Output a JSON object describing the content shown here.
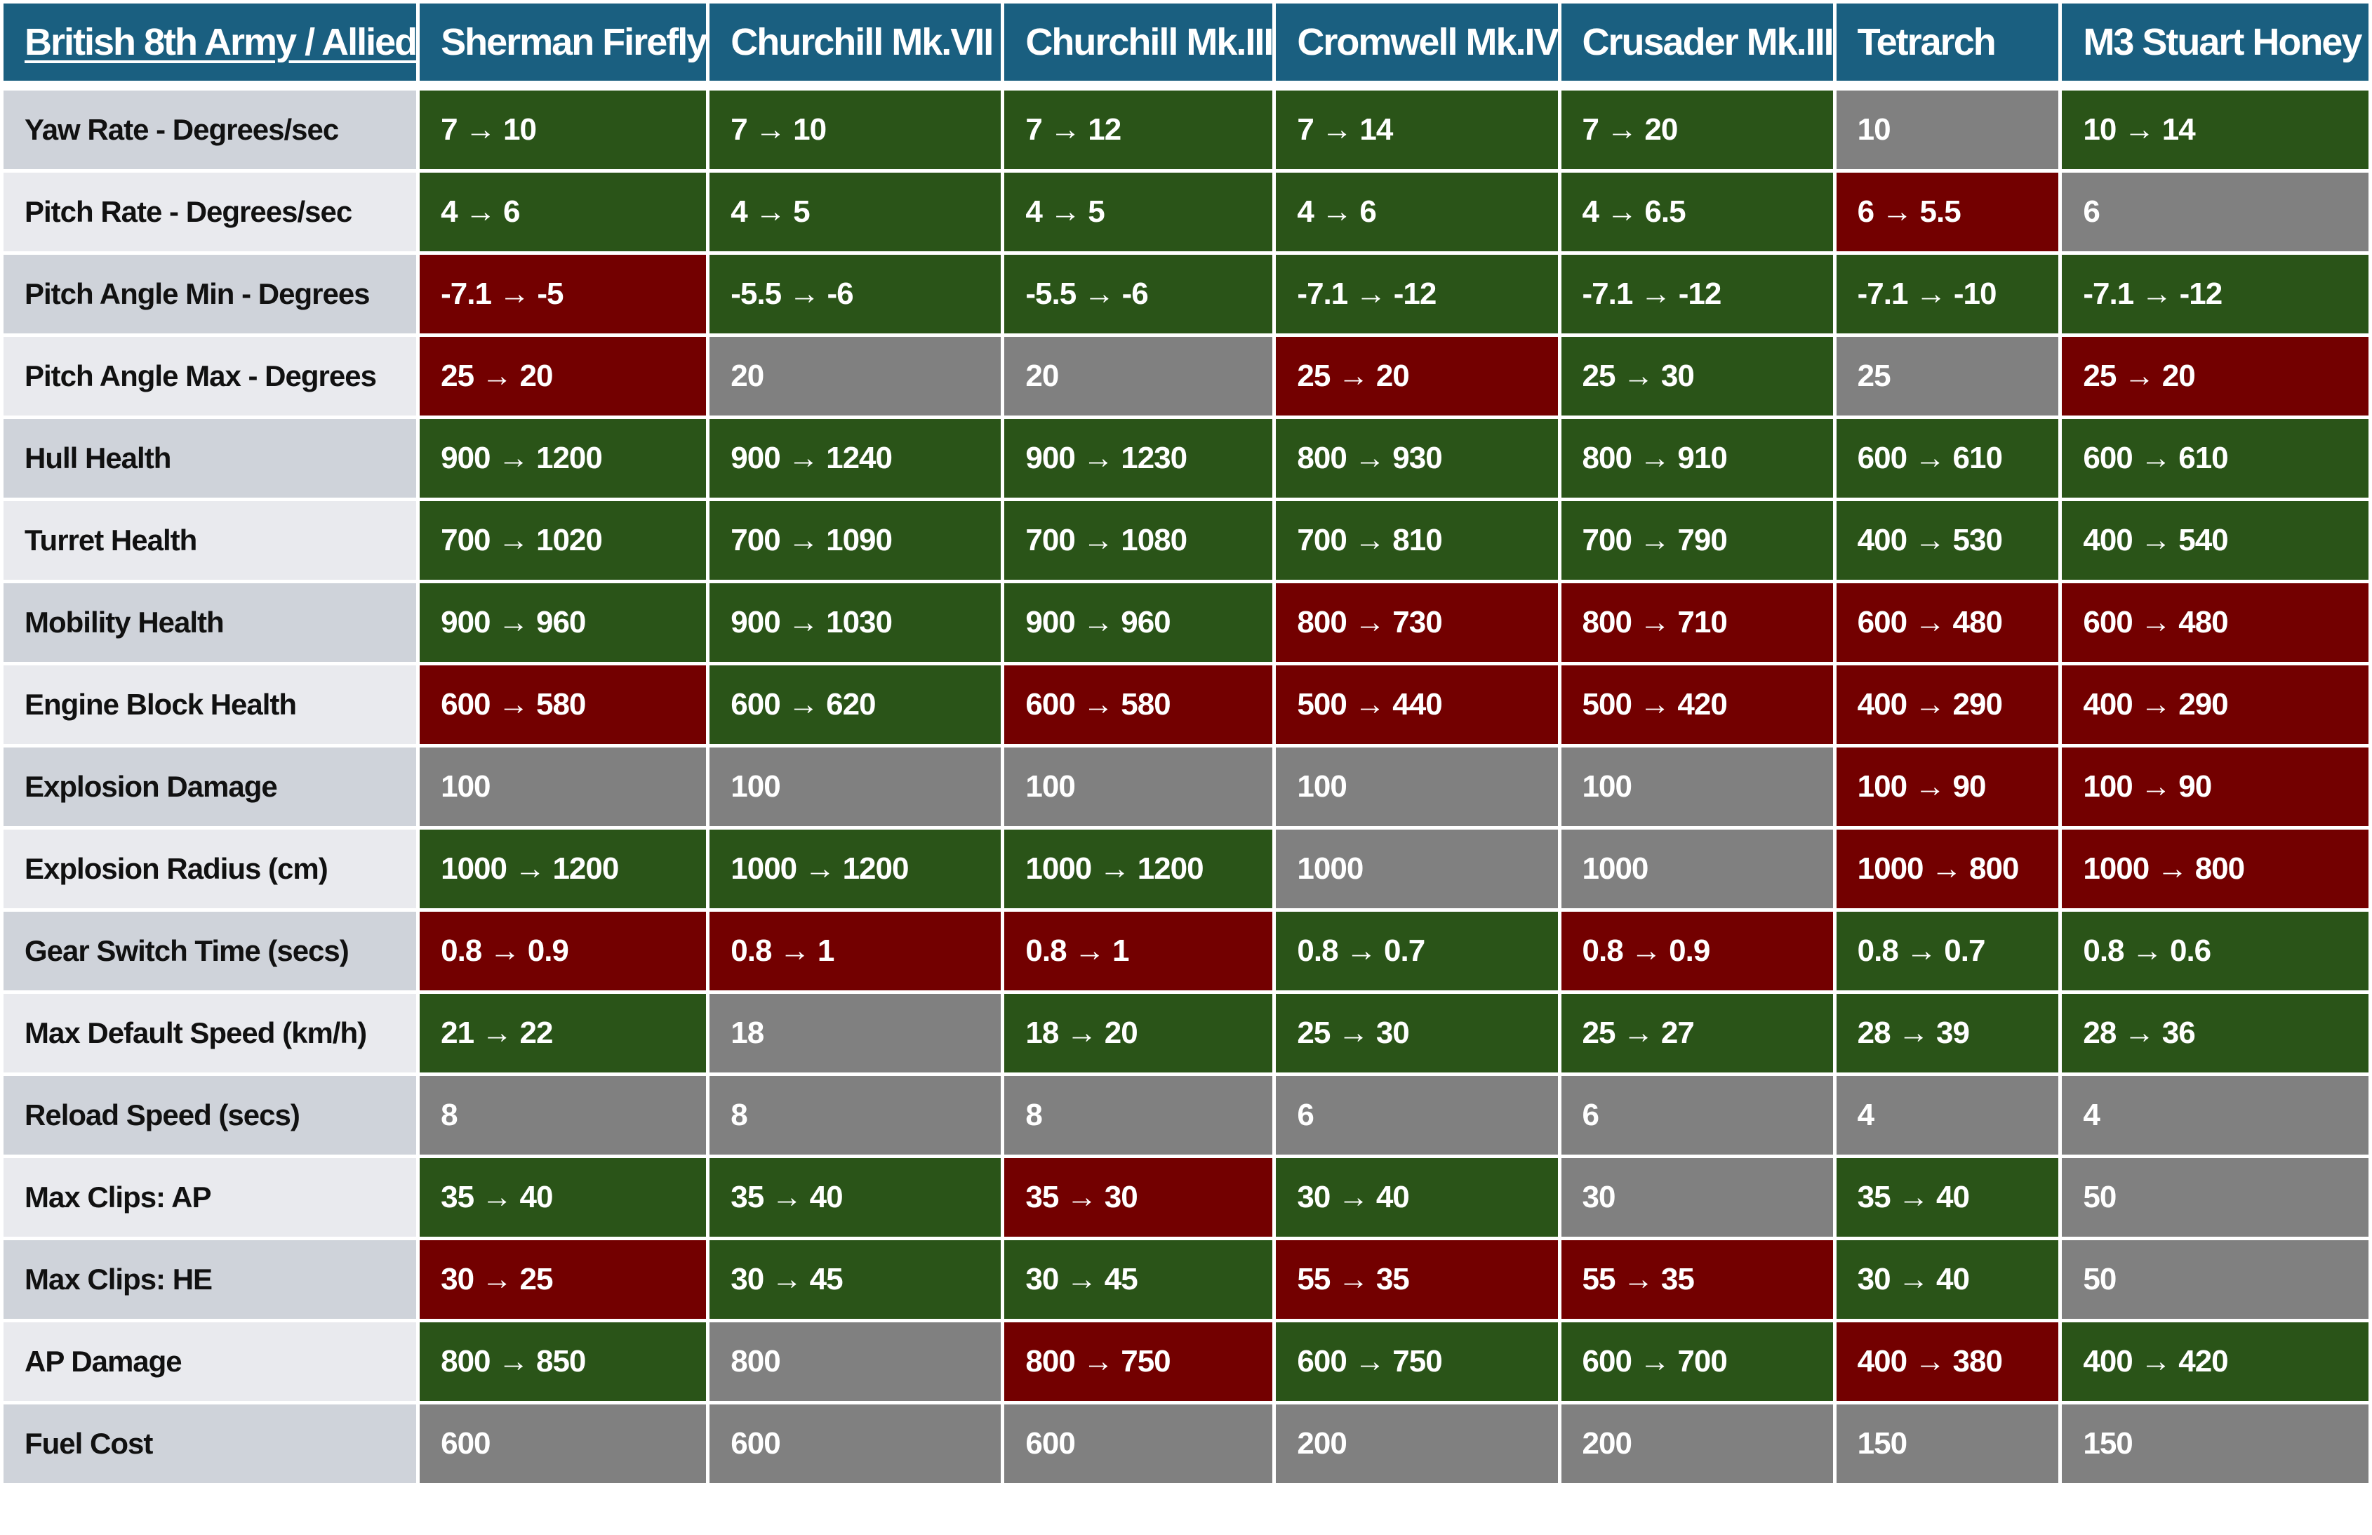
{
  "colors": {
    "header": "#1a5f80",
    "better": "#2a5418",
    "worse": "#730000",
    "unchanged": "#808080"
  },
  "table": {
    "corner_label": "British 8th Army / Allied",
    "columns": [
      "Sherman Firefly",
      "Churchill Mk.VII",
      "Churchill Mk.III",
      "Cromwell Mk.IV",
      "Crusader Mk.III",
      "Tetrarch",
      "M3 Stuart Honey"
    ],
    "rows": [
      {
        "label": "Yaw Rate - Degrees/sec",
        "cells": [
          [
            "7 → 10",
            "better"
          ],
          [
            "7 → 10",
            "better"
          ],
          [
            "7 → 12",
            "better"
          ],
          [
            "7 → 14",
            "better"
          ],
          [
            "7 → 20",
            "better"
          ],
          [
            "10",
            "unchanged"
          ],
          [
            "10 → 14",
            "better"
          ]
        ]
      },
      {
        "label": "Pitch Rate - Degrees/sec",
        "cells": [
          [
            "4 → 6",
            "better"
          ],
          [
            "4 → 5",
            "better"
          ],
          [
            "4 → 5",
            "better"
          ],
          [
            "4 → 6",
            "better"
          ],
          [
            "4 → 6.5",
            "better"
          ],
          [
            "6 → 5.5",
            "worse"
          ],
          [
            "6",
            "unchanged"
          ]
        ]
      },
      {
        "label": "Pitch Angle Min - Degrees",
        "cells": [
          [
            "-7.1 → -5",
            "worse"
          ],
          [
            "-5.5 → -6",
            "better"
          ],
          [
            "-5.5 → -6",
            "better"
          ],
          [
            "-7.1 → -12",
            "better"
          ],
          [
            "-7.1 → -12",
            "better"
          ],
          [
            "-7.1 → -10",
            "better"
          ],
          [
            "-7.1 → -12",
            "better"
          ]
        ]
      },
      {
        "label": "Pitch Angle Max - Degrees",
        "cells": [
          [
            "25 → 20",
            "worse"
          ],
          [
            "20",
            "unchanged"
          ],
          [
            "20",
            "unchanged"
          ],
          [
            "25 → 20",
            "worse"
          ],
          [
            "25 → 30",
            "better"
          ],
          [
            "25",
            "unchanged"
          ],
          [
            "25 → 20",
            "worse"
          ]
        ]
      },
      {
        "label": "Hull Health",
        "cells": [
          [
            "900 → 1200",
            "better"
          ],
          [
            "900 → 1240",
            "better"
          ],
          [
            "900 → 1230",
            "better"
          ],
          [
            "800 → 930",
            "better"
          ],
          [
            "800 → 910",
            "better"
          ],
          [
            "600 → 610",
            "better"
          ],
          [
            "600 → 610",
            "better"
          ]
        ]
      },
      {
        "label": "Turret Health",
        "cells": [
          [
            "700 → 1020",
            "better"
          ],
          [
            "700 → 1090",
            "better"
          ],
          [
            "700 → 1080",
            "better"
          ],
          [
            "700 → 810",
            "better"
          ],
          [
            "700 → 790",
            "better"
          ],
          [
            "400 → 530",
            "better"
          ],
          [
            "400 → 540",
            "better"
          ]
        ]
      },
      {
        "label": "Mobility Health",
        "cells": [
          [
            "900 → 960",
            "better"
          ],
          [
            "900 → 1030",
            "better"
          ],
          [
            "900 → 960",
            "better"
          ],
          [
            "800 → 730",
            "worse"
          ],
          [
            "800 → 710",
            "worse"
          ],
          [
            "600 → 480",
            "worse"
          ],
          [
            "600 → 480",
            "worse"
          ]
        ]
      },
      {
        "label": "Engine Block Health",
        "cells": [
          [
            "600 → 580",
            "worse"
          ],
          [
            "600 → 620",
            "better"
          ],
          [
            "600 → 580",
            "worse"
          ],
          [
            "500 → 440",
            "worse"
          ],
          [
            "500 → 420",
            "worse"
          ],
          [
            "400 → 290",
            "worse"
          ],
          [
            "400 → 290",
            "worse"
          ]
        ]
      },
      {
        "label": "Explosion Damage",
        "cells": [
          [
            "100",
            "unchanged"
          ],
          [
            "100",
            "unchanged"
          ],
          [
            "100",
            "unchanged"
          ],
          [
            "100",
            "unchanged"
          ],
          [
            "100",
            "unchanged"
          ],
          [
            "100 → 90",
            "worse"
          ],
          [
            "100 → 90",
            "worse"
          ]
        ]
      },
      {
        "label": "Explosion Radius (cm)",
        "cells": [
          [
            "1000 → 1200",
            "better"
          ],
          [
            "1000 → 1200",
            "better"
          ],
          [
            "1000 → 1200",
            "better"
          ],
          [
            "1000",
            "unchanged"
          ],
          [
            "1000",
            "unchanged"
          ],
          [
            "1000 → 800",
            "worse"
          ],
          [
            "1000 → 800",
            "worse"
          ]
        ]
      },
      {
        "label": "Gear Switch Time (secs)",
        "cells": [
          [
            "0.8 → 0.9",
            "worse"
          ],
          [
            "0.8 → 1",
            "worse"
          ],
          [
            "0.8 → 1",
            "worse"
          ],
          [
            "0.8 → 0.7",
            "better"
          ],
          [
            "0.8 → 0.9",
            "worse"
          ],
          [
            "0.8 → 0.7",
            "better"
          ],
          [
            "0.8 → 0.6",
            "better"
          ]
        ]
      },
      {
        "label": "Max Default Speed (km/h)",
        "cells": [
          [
            "21 → 22",
            "better"
          ],
          [
            "18",
            "unchanged"
          ],
          [
            "18 → 20",
            "better"
          ],
          [
            "25 → 30",
            "better"
          ],
          [
            "25 → 27",
            "better"
          ],
          [
            "28 → 39",
            "better"
          ],
          [
            "28 → 36",
            "better"
          ]
        ]
      },
      {
        "label": "Reload Speed (secs)",
        "cells": [
          [
            "8",
            "unchanged"
          ],
          [
            "8",
            "unchanged"
          ],
          [
            "8",
            "unchanged"
          ],
          [
            "6",
            "unchanged"
          ],
          [
            "6",
            "unchanged"
          ],
          [
            "4",
            "unchanged"
          ],
          [
            "4",
            "unchanged"
          ]
        ]
      },
      {
        "label": "Max Clips: AP",
        "cells": [
          [
            "35 → 40",
            "better"
          ],
          [
            "35 → 40",
            "better"
          ],
          [
            "35 → 30",
            "worse"
          ],
          [
            "30 → 40",
            "better"
          ],
          [
            "30",
            "unchanged"
          ],
          [
            "35 → 40",
            "better"
          ],
          [
            "50",
            "unchanged"
          ]
        ]
      },
      {
        "label": "Max Clips: HE",
        "cells": [
          [
            "30 → 25",
            "worse"
          ],
          [
            "30 → 45",
            "better"
          ],
          [
            "30 → 45",
            "better"
          ],
          [
            "55 → 35",
            "worse"
          ],
          [
            "55 → 35",
            "worse"
          ],
          [
            "30 → 40",
            "better"
          ],
          [
            "50",
            "unchanged"
          ]
        ]
      },
      {
        "label": "AP Damage",
        "cells": [
          [
            "800 → 850",
            "better"
          ],
          [
            "800",
            "unchanged"
          ],
          [
            "800 → 750",
            "worse"
          ],
          [
            "600 → 750",
            "better"
          ],
          [
            "600 → 700",
            "better"
          ],
          [
            "400 → 380",
            "worse"
          ],
          [
            "400 → 420",
            "better"
          ]
        ]
      },
      {
        "label": "Fuel Cost",
        "cells": [
          [
            "600",
            "unchanged"
          ],
          [
            "600",
            "unchanged"
          ],
          [
            "600",
            "unchanged"
          ],
          [
            "200",
            "unchanged"
          ],
          [
            "200",
            "unchanged"
          ],
          [
            "150",
            "unchanged"
          ],
          [
            "150",
            "unchanged"
          ]
        ]
      }
    ]
  }
}
